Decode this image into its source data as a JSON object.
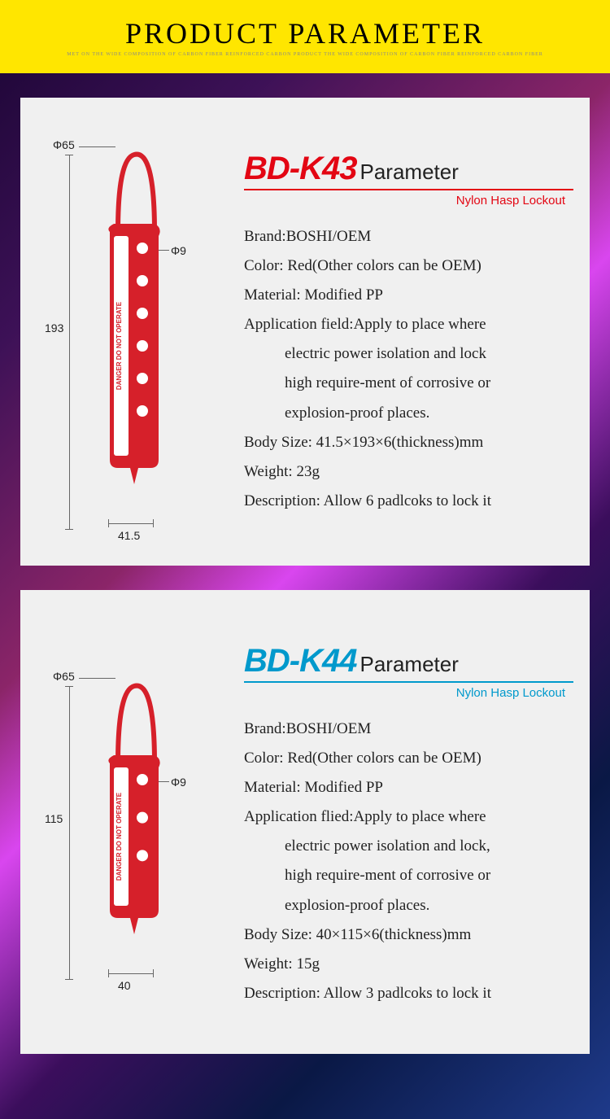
{
  "header": {
    "title": "PRODUCT PARAMETER",
    "banner_color": "#ffe600"
  },
  "products": [
    {
      "model": "BD-K43",
      "model_color": "#e30613",
      "parameter_label": "Parameter",
      "subtitle": "Nylon Hasp Lockout",
      "subtitle_color": "#e30613",
      "underline_color": "#e30613",
      "diagram": {
        "top_dim": "Φ65",
        "hole_dim": "Φ9",
        "height_dim": "193",
        "width_dim": "41.5",
        "hole_count": 6,
        "body_height": 280,
        "hasp_color": "#d6202a"
      },
      "specs": {
        "brand_label": "Brand:",
        "brand_value": "BOSHI/OEM",
        "color_label": "Color:",
        "color_value": "Red(Other colors can be OEM)",
        "material_label": "Material:",
        "material_value": "Modified PP",
        "application_label": "Application field:",
        "application_value_1": "Apply to place where",
        "application_value_2": "electric power isolation and lock",
        "application_value_3": "high require-ment of corrosive or",
        "application_value_4": "explosion-proof places.",
        "bodysize_label": "Body Size:",
        "bodysize_value": "41.5×193×6(thickness)mm",
        "weight_label": "Weight:",
        "weight_value": "23g",
        "description_label": "Description:",
        "description_value": "Allow 6 padlcoks to lock it"
      }
    },
    {
      "model": "BD-K44",
      "model_color": "#0099cc",
      "parameter_label": "Parameter",
      "subtitle": "Nylon Hasp Lockout",
      "subtitle_color": "#0099cc",
      "underline_color": "#0099cc",
      "diagram": {
        "top_dim": "Φ65",
        "hole_dim": "Φ9",
        "height_dim": "115",
        "width_dim": "40",
        "hole_count": 3,
        "body_height": 180,
        "hasp_color": "#d6202a"
      },
      "specs": {
        "brand_label": "Brand:",
        "brand_value": "BOSHI/OEM",
        "color_label": "Color:",
        "color_value": "Red(Other colors can be OEM)",
        "material_label": "Material:",
        "material_value": "Modified PP",
        "application_label": "Application flied:",
        "application_value_1": "Apply to place where",
        "application_value_2": "electric power isolation and lock,",
        "application_value_3": "high require-ment of corrosive or",
        "application_value_4": "explosion-proof places.",
        "bodysize_label": "Body Size:",
        "bodysize_value": "40×115×6(thickness)mm",
        "weight_label": "Weight:",
        "weight_value": "15g",
        "description_label": "Description:",
        "description_value": "Allow 3 padlcoks to lock it"
      }
    }
  ]
}
